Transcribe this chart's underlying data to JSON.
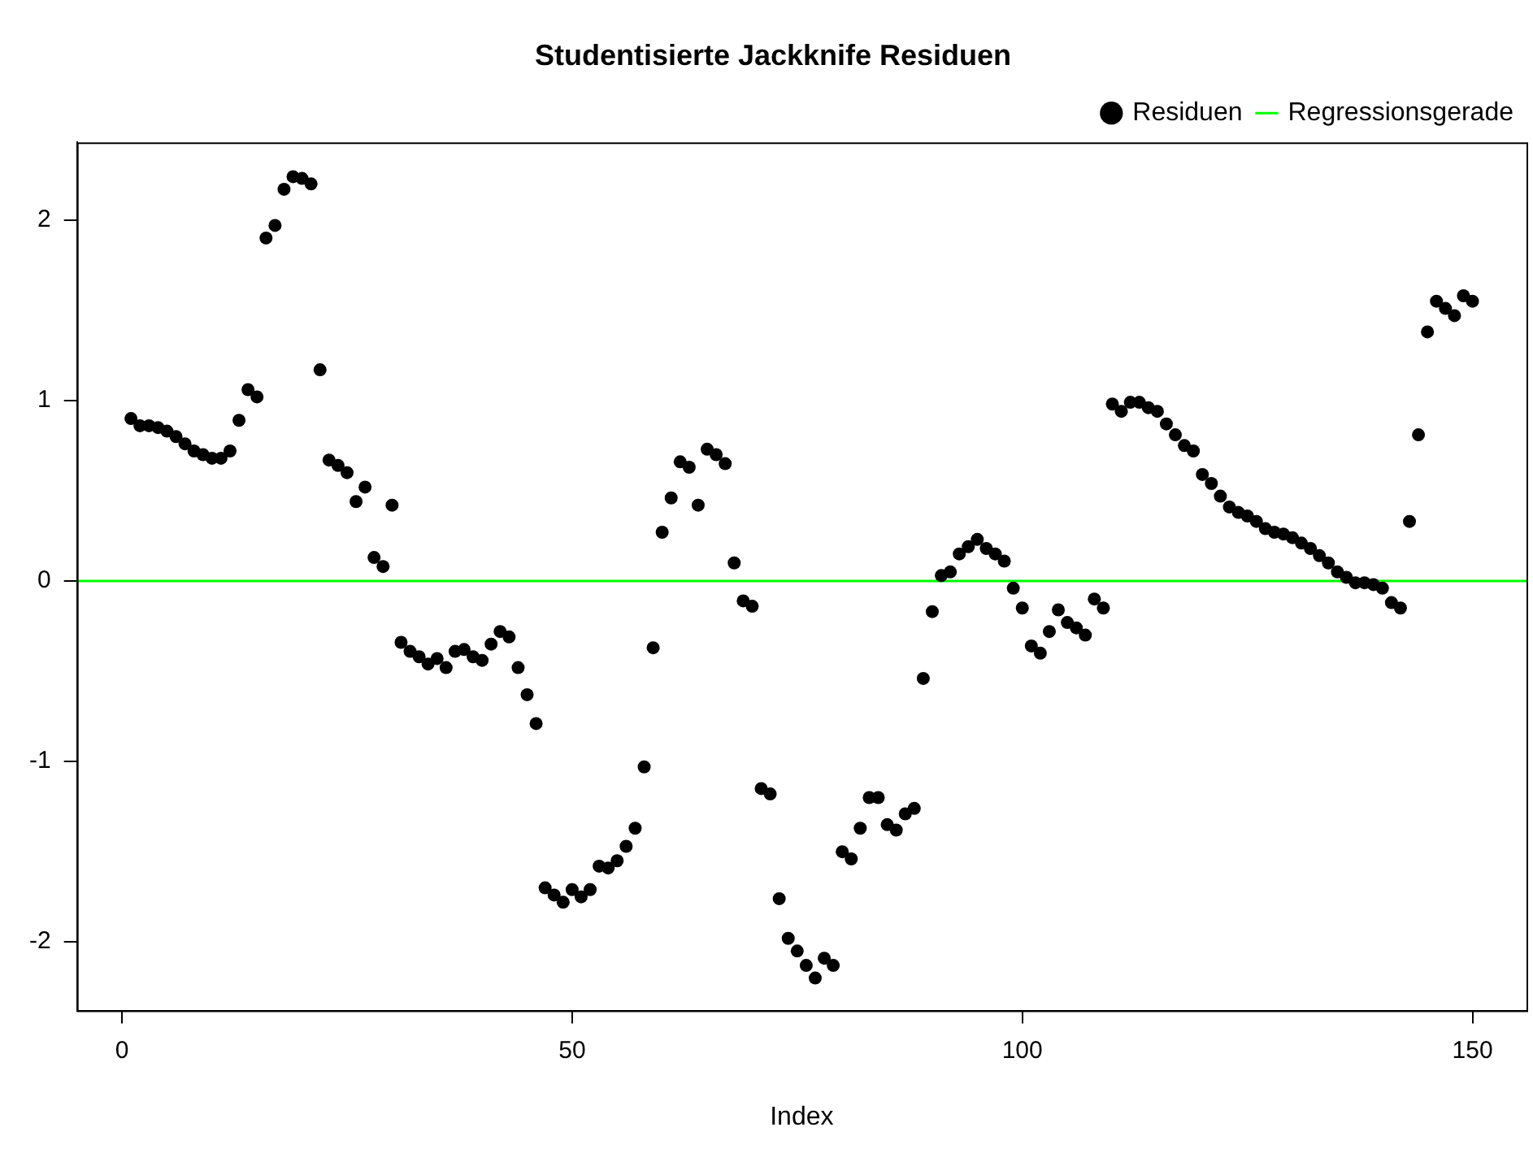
{
  "chart_data": {
    "type": "scatter",
    "title": "Studentisierte Jackknife Residuen",
    "xlabel": "Index",
    "x": [
      1,
      2,
      3,
      4,
      5,
      6,
      7,
      8,
      9,
      10,
      11,
      12,
      13,
      14,
      15,
      16,
      17,
      18,
      19,
      20,
      21,
      22,
      23,
      24,
      25,
      26,
      27,
      28,
      29,
      30,
      31,
      32,
      33,
      34,
      35,
      36,
      37,
      38,
      39,
      40,
      41,
      42,
      43,
      44,
      45,
      46,
      47,
      48,
      49,
      50,
      51,
      52,
      53,
      54,
      55,
      56,
      57,
      58,
      59,
      60,
      61,
      62,
      63,
      64,
      65,
      66,
      67,
      68,
      69,
      70,
      71,
      72,
      73,
      74,
      75,
      76,
      77,
      78,
      79,
      80,
      81,
      82,
      83,
      84,
      85,
      86,
      87,
      88,
      89,
      90,
      91,
      92,
      93,
      94,
      95,
      96,
      97,
      98,
      99,
      100,
      101,
      102,
      103,
      104,
      105,
      106,
      107,
      108,
      109,
      110,
      111,
      112,
      113,
      114,
      115,
      116,
      117,
      118,
      119,
      120,
      121,
      122,
      123,
      124,
      125,
      126,
      127,
      128,
      129,
      130,
      131,
      132,
      133,
      134,
      135,
      136,
      137,
      138,
      139,
      140,
      141,
      142,
      143,
      144,
      145,
      146,
      147,
      148,
      149,
      150
    ],
    "series": [
      {
        "name": "Residuen",
        "color": "#000000",
        "marker": "circle",
        "values": [
          0.9,
          0.86,
          0.86,
          0.85,
          0.83,
          0.8,
          0.76,
          0.72,
          0.7,
          0.68,
          0.68,
          0.72,
          0.89,
          1.06,
          1.02,
          1.9,
          1.97,
          2.17,
          2.24,
          2.23,
          2.2,
          1.17,
          0.67,
          0.64,
          0.6,
          0.44,
          0.52,
          0.13,
          0.08,
          0.42,
          -0.34,
          -0.39,
          -0.42,
          -0.46,
          -0.43,
          -0.48,
          -0.39,
          -0.38,
          -0.42,
          -0.44,
          -0.35,
          -0.28,
          -0.31,
          -0.48,
          -0.63,
          -0.79,
          -1.7,
          -1.74,
          -1.78,
          -1.71,
          -1.75,
          -1.71,
          -1.58,
          -1.59,
          -1.55,
          -1.47,
          -1.37,
          -1.03,
          -0.37,
          0.27,
          0.46,
          0.66,
          0.63,
          0.42,
          0.73,
          0.7,
          0.65,
          0.1,
          -0.11,
          -0.14,
          -1.15,
          -1.18,
          -1.76,
          -1.98,
          -2.05,
          -2.13,
          -2.2,
          -2.09,
          -2.13,
          -1.5,
          -1.54,
          -1.37,
          -1.2,
          -1.2,
          -1.35,
          -1.38,
          -1.29,
          -1.26,
          -0.54,
          -0.17,
          0.03,
          0.05,
          0.15,
          0.19,
          0.23,
          0.18,
          0.15,
          0.11,
          -0.04,
          -0.15,
          -0.36,
          -0.4,
          -0.28,
          -0.16,
          -0.23,
          -0.26,
          -0.3,
          -0.1,
          -0.15,
          0.98,
          0.94,
          0.99,
          0.99,
          0.96,
          0.94,
          0.87,
          0.81,
          0.75,
          0.72,
          0.59,
          0.54,
          0.47,
          0.41,
          0.38,
          0.36,
          0.33,
          0.29,
          0.27,
          0.26,
          0.24,
          0.21,
          0.18,
          0.14,
          0.1,
          0.05,
          0.02,
          -0.01,
          -0.01,
          -0.02,
          -0.04,
          -0.12,
          -0.15,
          0.33,
          0.81,
          1.38,
          1.55,
          1.51,
          1.47,
          1.58,
          1.55
        ]
      },
      {
        "name": "Regressionsgerade",
        "type": "line",
        "color": "#00ff00",
        "marker": "none",
        "line_style": "solid",
        "x": [
          -5,
          156
        ],
        "values": [
          0,
          0
        ]
      }
    ],
    "xlim": [
      -5,
      156
    ],
    "xticks": [
      0,
      50,
      100,
      150
    ],
    "ylim": [
      -2.38,
      2.43
    ],
    "yticks": [
      -2,
      -1,
      0,
      1,
      2
    ],
    "grid": false,
    "legend": "top right"
  }
}
